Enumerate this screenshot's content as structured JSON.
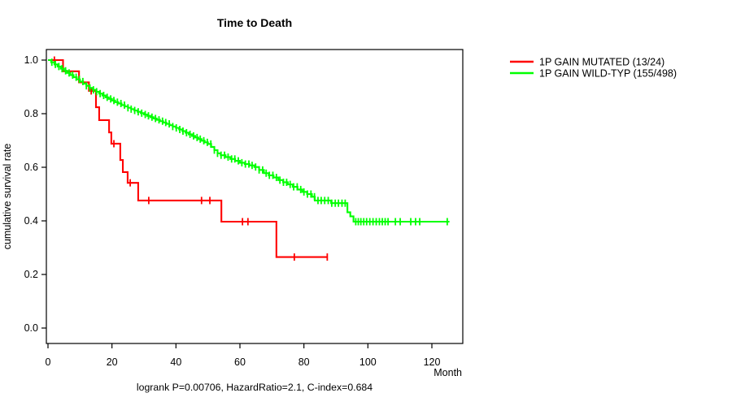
{
  "chart_data": {
    "type": "line",
    "subtype": "kaplan-meier-step",
    "title": "Time to Death",
    "xlabel": "Month",
    "ylabel": "cumulative survival rate",
    "annotation": "logrank P=0.00706, HazardRatio=2.1, C-index=0.684",
    "grid": false,
    "x_axis": {
      "ticks": [
        0,
        20,
        40,
        60,
        80,
        100,
        120
      ],
      "tick_labels": [
        "0",
        "20",
        "40",
        "60",
        "80",
        "100",
        "120"
      ],
      "range": [
        -0.5,
        129.5
      ]
    },
    "y_axis": {
      "ticks": [
        0.0,
        0.2,
        0.4,
        0.6,
        0.8,
        1.0
      ],
      "tick_labels": [
        "0.0",
        "0.2",
        "0.4",
        "0.6",
        "0.8",
        "1.0"
      ],
      "range": [
        -0.058,
        1.04
      ]
    },
    "legend": {
      "position": "right",
      "items": [
        {
          "label": "1P GAIN MUTATED (13/24)",
          "color": "#ff0000"
        },
        {
          "label": "1P GAIN WILD-TYP (155/498)",
          "color": "#00ff00"
        }
      ]
    },
    "series": [
      {
        "name": "1P GAIN MUTATED (13/24)",
        "color": "#ff0000",
        "events": "13/24",
        "end_time": 87.3,
        "breakpoints": [
          [
            0,
            1.0
          ],
          [
            4.7,
            0.958
          ],
          [
            9.7,
            0.917
          ],
          [
            12.8,
            0.885
          ],
          [
            15.0,
            0.824
          ],
          [
            16.0,
            0.776
          ],
          [
            19.1,
            0.73
          ],
          [
            19.8,
            0.688
          ],
          [
            22.6,
            0.627
          ],
          [
            23.4,
            0.582
          ],
          [
            24.9,
            0.542
          ],
          [
            28.2,
            0.476
          ],
          [
            54.2,
            0.397
          ],
          [
            71.4,
            0.265
          ]
        ],
        "censor_times": [
          2.0,
          13.5,
          20.6,
          25.7,
          31.5,
          48.0,
          50.6,
          60.8,
          62.5,
          77.0,
          87.3
        ]
      },
      {
        "name": "1P GAIN WILD-TYP (155/498)",
        "color": "#00ff00",
        "events": "155/498",
        "end_time": 125.5,
        "breakpoints": [
          [
            0,
            1.0
          ],
          [
            1,
            0.992
          ],
          [
            2,
            0.984
          ],
          [
            3,
            0.976
          ],
          [
            4,
            0.968
          ],
          [
            5,
            0.96
          ],
          [
            6,
            0.952
          ],
          [
            7,
            0.944
          ],
          [
            8,
            0.936
          ],
          [
            9,
            0.928
          ],
          [
            10,
            0.92
          ],
          [
            11,
            0.912
          ],
          [
            12,
            0.904
          ],
          [
            13,
            0.896
          ],
          [
            14,
            0.889
          ],
          [
            15,
            0.882
          ],
          [
            16,
            0.875
          ],
          [
            17,
            0.868
          ],
          [
            18,
            0.861
          ],
          [
            19,
            0.855
          ],
          [
            20,
            0.849
          ],
          [
            21,
            0.843
          ],
          [
            22,
            0.838
          ],
          [
            23,
            0.832
          ],
          [
            24,
            0.827
          ],
          [
            25,
            0.822
          ],
          [
            26,
            0.817
          ],
          [
            27,
            0.812
          ],
          [
            28,
            0.807
          ],
          [
            29,
            0.802
          ],
          [
            30,
            0.797
          ],
          [
            31,
            0.792
          ],
          [
            32,
            0.787
          ],
          [
            33,
            0.782
          ],
          [
            34,
            0.777
          ],
          [
            35,
            0.772
          ],
          [
            36,
            0.767
          ],
          [
            37,
            0.762
          ],
          [
            38,
            0.757
          ],
          [
            39,
            0.752
          ],
          [
            40,
            0.747
          ],
          [
            41,
            0.741
          ],
          [
            42,
            0.735
          ],
          [
            43,
            0.729
          ],
          [
            44,
            0.723
          ],
          [
            45,
            0.717
          ],
          [
            46,
            0.711
          ],
          [
            47,
            0.705
          ],
          [
            48,
            0.699
          ],
          [
            49,
            0.693
          ],
          [
            50,
            0.687
          ],
          [
            51,
            0.676
          ],
          [
            52,
            0.664
          ],
          [
            53,
            0.652
          ],
          [
            54,
            0.645
          ],
          [
            55.5,
            0.638
          ],
          [
            57,
            0.631
          ],
          [
            58.5,
            0.624
          ],
          [
            60,
            0.617
          ],
          [
            61.5,
            0.612
          ],
          [
            63,
            0.607
          ],
          [
            64.5,
            0.601
          ],
          [
            66,
            0.59
          ],
          [
            67.5,
            0.578
          ],
          [
            69,
            0.57
          ],
          [
            70.5,
            0.562
          ],
          [
            72,
            0.552
          ],
          [
            73.5,
            0.544
          ],
          [
            75,
            0.536
          ],
          [
            76.5,
            0.527
          ],
          [
            78,
            0.517
          ],
          [
            79.5,
            0.508
          ],
          [
            81,
            0.5
          ],
          [
            82.5,
            0.49
          ],
          [
            83.4,
            0.476
          ],
          [
            88.5,
            0.466
          ],
          [
            93.6,
            0.432
          ],
          [
            94.5,
            0.417
          ],
          [
            95.5,
            0.397
          ]
        ],
        "censor_times": [
          1.2,
          2.3,
          3.4,
          4.4,
          5.5,
          6.6,
          7.7,
          8.8,
          9.8,
          10.9,
          12.0,
          13.1,
          14.2,
          15.2,
          16.3,
          17.4,
          18.5,
          19.6,
          20.6,
          21.7,
          22.8,
          23.9,
          25.0,
          26.0,
          27.1,
          28.2,
          29.3,
          30.4,
          31.4,
          32.5,
          33.6,
          34.7,
          35.8,
          36.8,
          37.9,
          39.0,
          40.1,
          41.2,
          42.2,
          43.3,
          44.4,
          45.5,
          46.6,
          47.6,
          48.7,
          49.8,
          50.9,
          52.0,
          53.0,
          54.1,
          55.2,
          56.3,
          57.4,
          58.4,
          59.5,
          60.6,
          61.7,
          62.8,
          63.8,
          64.9,
          66.0,
          67.1,
          68.2,
          69.2,
          70.3,
          71.4,
          72.5,
          73.6,
          74.6,
          75.7,
          76.8,
          77.9,
          79.0,
          80.0,
          81.1,
          82.2,
          83.3,
          84.4,
          85.4,
          86.5,
          87.6,
          88.7,
          89.8,
          90.8,
          91.9,
          92.9,
          96.2,
          97.0,
          97.8,
          98.7,
          99.6,
          100.6,
          101.6,
          102.6,
          103.6,
          104.5,
          105.4,
          106.3,
          108.6,
          110.1,
          113.4,
          114.9,
          116.2,
          124.8
        ]
      }
    ]
  }
}
